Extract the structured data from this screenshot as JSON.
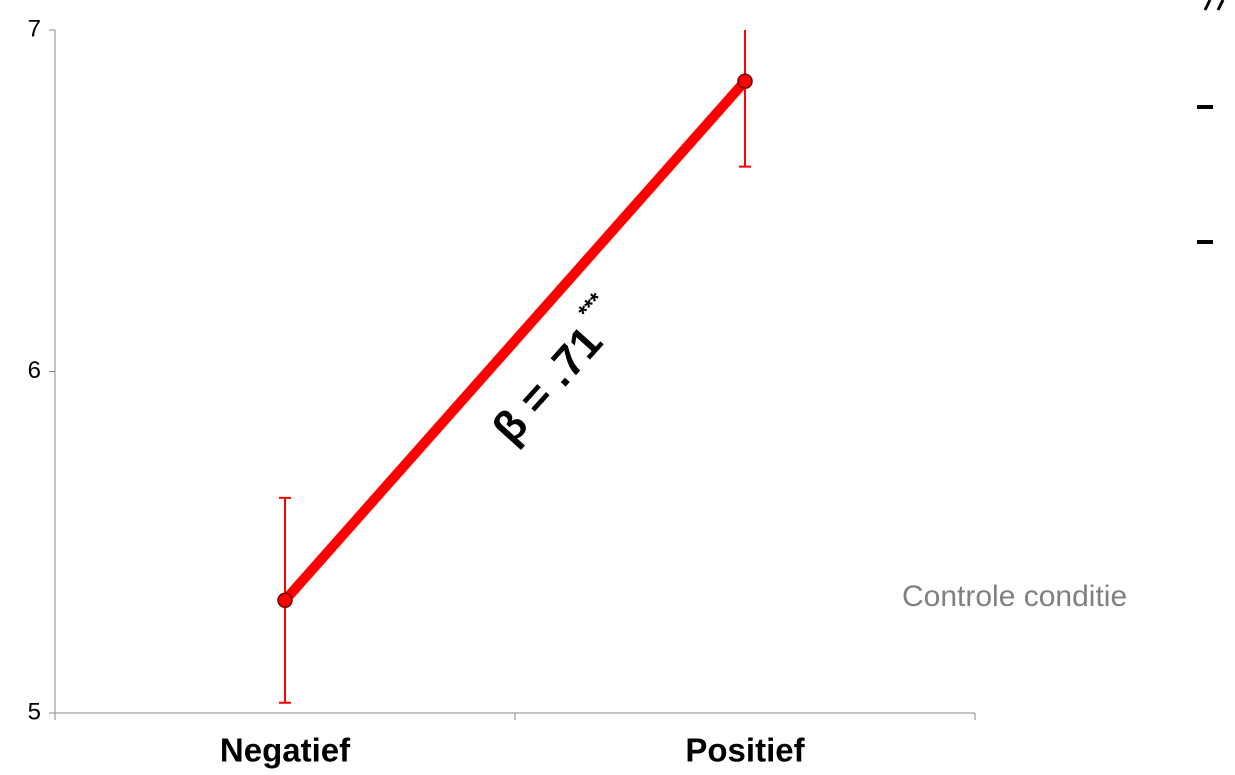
{
  "chart_data": {
    "type": "line",
    "categories": [
      "Negatief",
      "Positief"
    ],
    "series": [
      {
        "name": "Controle conditie",
        "color": "#ff0000",
        "values": [
          5.33,
          6.85
        ],
        "errors": [
          0.3,
          0.25
        ]
      }
    ],
    "ylim": [
      5,
      7
    ],
    "yticks": [
      5,
      6,
      7
    ],
    "annotation": "β = .71",
    "annotation_superscript": "***"
  }
}
